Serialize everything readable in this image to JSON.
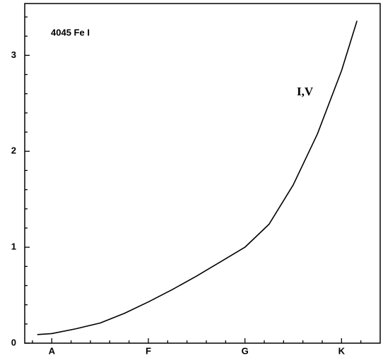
{
  "chart_data": {
    "type": "line",
    "annotations": [
      "4045 Fe I",
      "I,V"
    ],
    "x": [
      -1.5,
      0,
      2.5,
      5,
      7.5,
      10,
      12.5,
      15,
      17.5,
      20,
      22.5,
      25,
      27.5,
      30,
      31.6
    ],
    "series": [
      {
        "color": "#000000",
        "values": [
          0.09,
          0.1,
          0.15,
          0.21,
          0.31,
          0.43,
          0.56,
          0.7,
          0.85,
          1.0,
          1.24,
          1.65,
          2.18,
          2.84,
          3.36
        ]
      }
    ],
    "xlim": [
      -2.8,
      34
    ],
    "xticks": [
      {
        "value": 0,
        "label": "A"
      },
      {
        "value": 10,
        "label": "F"
      },
      {
        "value": 20,
        "label": "G"
      },
      {
        "value": 30,
        "label": "K"
      }
    ],
    "xminorticks": [
      -2,
      2,
      4,
      6,
      8,
      12,
      14,
      16,
      18,
      22,
      24,
      26,
      28,
      32
    ],
    "ylim": [
      0,
      3.54
    ],
    "yticks": [
      0,
      1,
      2,
      3
    ],
    "yminorticks": [
      0.2,
      0.4,
      0.6,
      0.8,
      1.2,
      1.4,
      1.6,
      1.8,
      2.2,
      2.4,
      2.6,
      2.8,
      3.2,
      3.4
    ],
    "grid": false
  }
}
